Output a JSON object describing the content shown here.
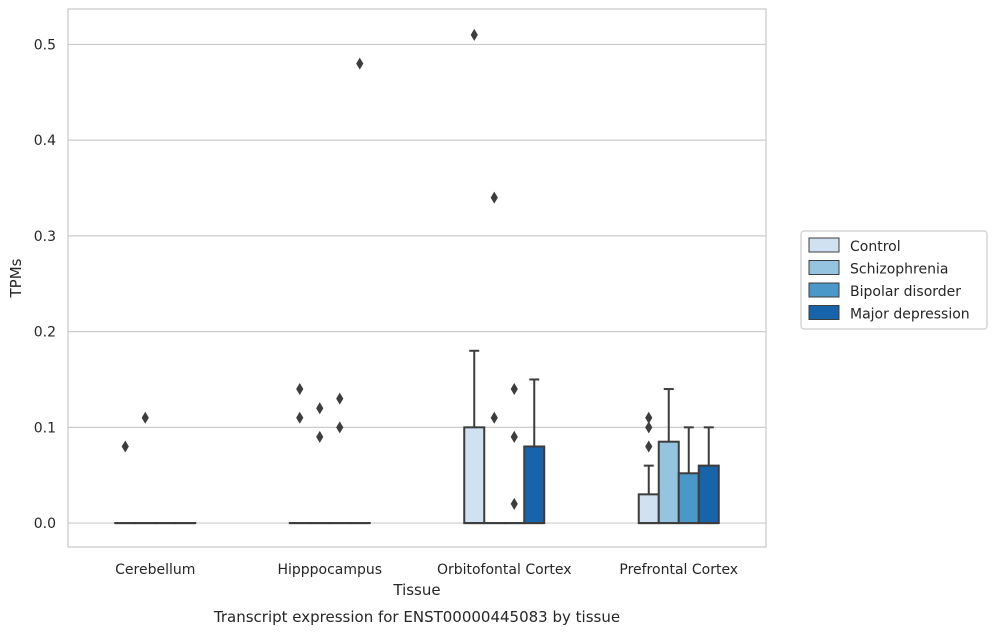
{
  "chart_data": {
    "type": "box",
    "xlabel": "Tissue",
    "ylabel": "TPMs",
    "caption": "Transcript expression for ENST00000445083 by tissue",
    "ylim": [
      -0.025,
      0.537
    ],
    "yticks": [
      0.0,
      0.1,
      0.2,
      0.3,
      0.4,
      0.5
    ],
    "ytick_labels": [
      "0.0",
      "0.1",
      "0.2",
      "0.3",
      "0.4",
      "0.5"
    ],
    "grid": true,
    "legend_position": "right",
    "categories": [
      "Cerebellum",
      "Hipppocampus",
      "Orbitofontal Cortex",
      "Prefrontal Cortex"
    ],
    "series": [
      {
        "name": "Control",
        "color": "#d0e1f2",
        "boxes": [
          {
            "q1": 0,
            "median": 0,
            "q3": 0,
            "whisker_low": 0,
            "whisker_high": 0,
            "outliers": [
              0.08
            ]
          },
          {
            "q1": 0,
            "median": 0,
            "q3": 0,
            "whisker_low": 0,
            "whisker_high": 0,
            "outliers": [
              0.11,
              0.14
            ]
          },
          {
            "q1": 0,
            "median": 0,
            "q3": 0.1,
            "whisker_low": 0,
            "whisker_high": 0.18,
            "outliers": [
              0.51
            ]
          },
          {
            "q1": 0,
            "median": 0,
            "q3": 0.03,
            "whisker_low": 0,
            "whisker_high": 0.06,
            "outliers": [
              0.08,
              0.1,
              0.11
            ]
          }
        ]
      },
      {
        "name": "Schizophrenia",
        "color": "#94c4df",
        "boxes": [
          {
            "q1": 0,
            "median": 0,
            "q3": 0,
            "whisker_low": 0,
            "whisker_high": 0,
            "outliers": [
              0.11
            ]
          },
          {
            "q1": 0,
            "median": 0,
            "q3": 0,
            "whisker_low": 0,
            "whisker_high": 0,
            "outliers": [
              0.09,
              0.12
            ]
          },
          {
            "q1": 0,
            "median": 0,
            "q3": 0,
            "whisker_low": 0,
            "whisker_high": 0,
            "outliers": [
              0.11,
              0.34
            ]
          },
          {
            "q1": 0,
            "median": 0,
            "q3": 0.085,
            "whisker_low": 0,
            "whisker_high": 0.14,
            "outliers": []
          }
        ]
      },
      {
        "name": "Bipolar disorder",
        "color": "#4a98c9",
        "boxes": [
          {
            "q1": 0,
            "median": 0,
            "q3": 0,
            "whisker_low": 0,
            "whisker_high": 0,
            "outliers": []
          },
          {
            "q1": 0,
            "median": 0,
            "q3": 0,
            "whisker_low": 0,
            "whisker_high": 0,
            "outliers": [
              0.1,
              0.13
            ]
          },
          {
            "q1": 0,
            "median": 0,
            "q3": 0,
            "whisker_low": 0,
            "whisker_high": 0,
            "outliers": [
              0.02,
              0.09,
              0.14
            ]
          },
          {
            "q1": 0,
            "median": 0,
            "q3": 0.052,
            "whisker_low": 0,
            "whisker_high": 0.1,
            "outliers": []
          }
        ]
      },
      {
        "name": "Major depression",
        "color": "#1764ab",
        "boxes": [
          {
            "q1": 0,
            "median": 0,
            "q3": 0,
            "whisker_low": 0,
            "whisker_high": 0,
            "outliers": []
          },
          {
            "q1": 0,
            "median": 0,
            "q3": 0,
            "whisker_low": 0,
            "whisker_high": 0,
            "outliers": [
              0.48
            ]
          },
          {
            "q1": 0,
            "median": 0,
            "q3": 0.08,
            "whisker_low": 0,
            "whisker_high": 0.15,
            "outliers": []
          },
          {
            "q1": 0,
            "median": 0,
            "q3": 0.06,
            "whisker_low": 0,
            "whisker_high": 0.1,
            "outliers": []
          }
        ]
      }
    ]
  }
}
